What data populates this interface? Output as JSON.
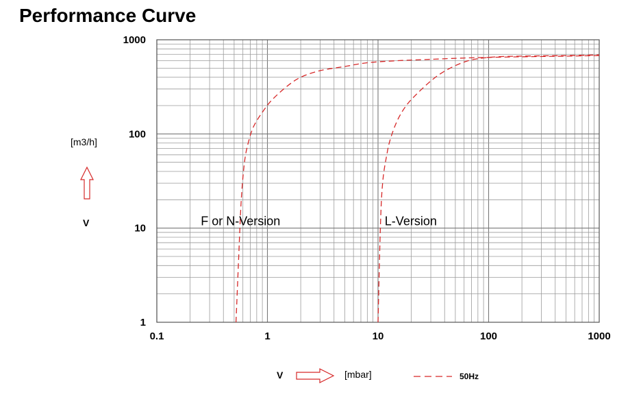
{
  "chart_data": {
    "type": "line",
    "title": "Performance Curve",
    "x_scale": "log",
    "y_scale": "log",
    "xlim": [
      0.1,
      1000
    ],
    "ylim": [
      1,
      1000
    ],
    "x_ticks": [
      "0.1",
      "1",
      "10",
      "100",
      "1000"
    ],
    "y_ticks": [
      "1",
      "10",
      "100",
      "1000"
    ],
    "x_unit": "[mbar]",
    "y_unit": "[m3/h]",
    "x_symbol": "V",
    "y_symbol": "V",
    "grid": true,
    "legend": {
      "label": "50Hz",
      "placement": "bottom-right",
      "style": "dashed",
      "color": "#d62828"
    },
    "series": [
      {
        "color": "#d62828",
        "x": [
          0.52,
          0.55,
          0.58,
          0.62,
          0.67,
          0.75,
          0.9,
          1.1,
          1.5,
          2,
          3,
          5,
          8,
          15,
          30,
          60,
          100,
          200,
          500,
          1000
        ],
        "y": [
          1,
          5,
          20,
          50,
          80,
          120,
          170,
          230,
          320,
          400,
          470,
          520,
          570,
          600,
          620,
          640,
          650,
          660,
          670,
          680
        ]
      },
      {
        "color": "#d62828",
        "x": [
          10,
          10.5,
          11,
          12,
          13,
          15,
          18,
          22,
          28,
          35,
          45,
          60,
          80,
          120,
          200,
          500,
          1000
        ],
        "y": [
          1,
          10,
          30,
          60,
          90,
          140,
          200,
          260,
          340,
          420,
          500,
          580,
          630,
          660,
          670,
          680,
          690
        ]
      }
    ],
    "annotations": [
      {
        "text": "F or N-Version",
        "x": 0.25,
        "y": 10.7
      },
      {
        "text": "L-Version",
        "x": 11.5,
        "y": 10.7
      }
    ]
  }
}
